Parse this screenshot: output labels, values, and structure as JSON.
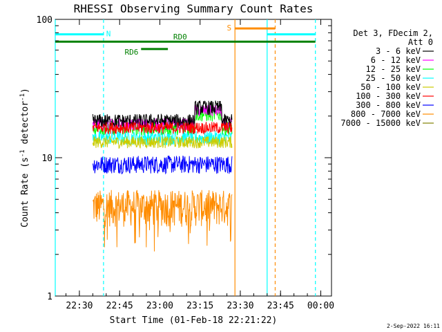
{
  "chart_data": {
    "type": "line",
    "title": "RHESSI Observing Summary Count Rates",
    "xlabel": "Start Time (01-Feb-18 22:21:22)",
    "ylabel_main": "Count Rate (s",
    "ylabel_sup1": "-1",
    "ylabel_mid": " detector",
    "ylabel_sup2": "-1",
    "ylabel_end": ")",
    "y_scale": "log",
    "ylim": [
      1,
      100
    ],
    "xlim_minutes_after_2221": [
      0,
      103
    ],
    "x_ticks": [
      {
        "t": 9,
        "label": "22:30"
      },
      {
        "t": 24,
        "label": "22:45"
      },
      {
        "t": 39,
        "label": "23:00"
      },
      {
        "t": 54,
        "label": "23:15"
      },
      {
        "t": 69,
        "label": "23:30"
      },
      {
        "t": 84,
        "label": "23:45"
      },
      {
        "t": 99,
        "label": "00:00"
      }
    ],
    "y_ticks": [
      {
        "v": 1,
        "label": "1"
      },
      {
        "v": 10,
        "label": "10"
      },
      {
        "v": 100,
        "label": "100"
      }
    ],
    "legend_header": [
      "Det 3, FDecim 2,",
      "Att 0"
    ],
    "series": [
      {
        "name": "3 - 6 keV",
        "color": "#000000",
        "level": 18.5,
        "start": 14,
        "end": 66,
        "var": 0.12
      },
      {
        "name": "6 - 12 keV",
        "color": "#ff00ff",
        "level": 17.5,
        "start": 14,
        "end": 66,
        "var": 0.1
      },
      {
        "name": "12 - 25 keV",
        "color": "#00ff00",
        "level": 16.5,
        "start": 14,
        "end": 66,
        "var": 0.12
      },
      {
        "name": "25 - 50 keV",
        "color": "#00ffff",
        "level": 14.0,
        "start": 14,
        "end": 66,
        "var": 0.12
      },
      {
        "name": "50 - 100 keV",
        "color": "#cccc00",
        "level": 13.0,
        "start": 14,
        "end": 66,
        "var": 0.1
      },
      {
        "name": "100 - 300 keV",
        "color": "#ff0000",
        "level": 16.5,
        "start": 14,
        "end": 66,
        "var": 0.1
      },
      {
        "name": "300 - 800 keV",
        "color": "#0000ff",
        "level": 9.0,
        "start": 14,
        "end": 66,
        "var": 0.15
      },
      {
        "name": "800 - 7000 keV",
        "color": "#ff8c00",
        "level": 4.5,
        "start": 14,
        "end": 66,
        "var": 0.3
      },
      {
        "name": "7000 - 15000 keV",
        "color": "#808000",
        "level": 1.0,
        "start": 14,
        "end": 66,
        "var": 0.0
      }
    ],
    "flags": [
      {
        "label": "N",
        "color": "#00ffff",
        "segments": [
          [
            0,
            18
          ],
          [
            79,
            97
          ]
        ],
        "level": 78
      },
      {
        "label": "S",
        "color": "#ff8c00",
        "segments": [
          [
            67,
            82
          ]
        ],
        "level": 86
      },
      {
        "label": "RD0",
        "color": "#008000",
        "segments": [
          [
            0,
            97
          ]
        ],
        "level": 69
      },
      {
        "label": "RD6",
        "color": "#008000",
        "segments": [
          [
            32,
            42
          ]
        ],
        "level": 61
      }
    ],
    "vlines": [
      {
        "t": 0,
        "color": "#00ffff",
        "dash": false
      },
      {
        "t": 18,
        "color": "#00ffff",
        "dash": true
      },
      {
        "t": 67,
        "color": "#ff8c00",
        "dash": false
      },
      {
        "t": 79,
        "color": "#00ffff",
        "dash": false
      },
      {
        "t": 82,
        "color": "#ff8c00",
        "dash": true
      },
      {
        "t": 97,
        "color": "#00ffff",
        "dash": true
      }
    ]
  },
  "stamp": "2-Sep-2022 16:11"
}
